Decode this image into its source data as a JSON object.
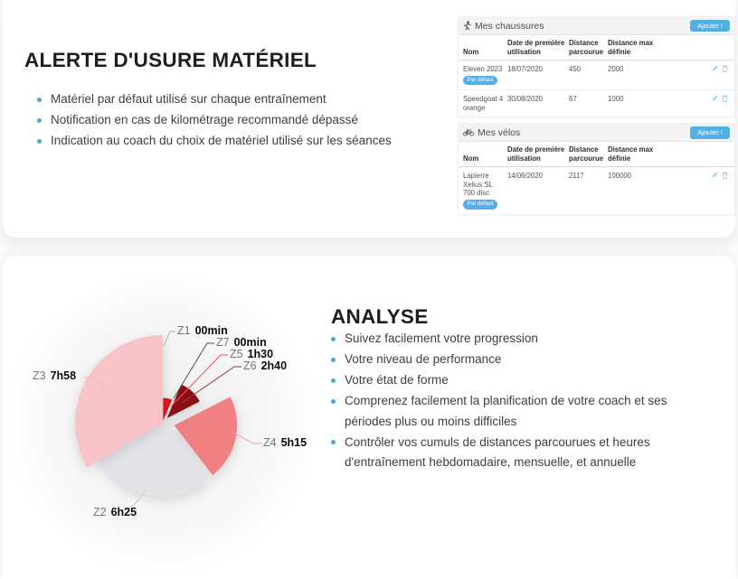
{
  "sections": {
    "usure": {
      "title": "ALERTE D'USURE MATÉRIEL",
      "bullets": [
        "Matériel par défaut utilisé sur chaque entraînement",
        "Notification en cas de kilométrage recommandé dépassé",
        "Indication au coach du choix de matériel utilisé sur les séances"
      ]
    },
    "analyse": {
      "title": "ANALYSE",
      "bullets": [
        "Suivez facilement votre progression",
        "Votre niveau de performance",
        "Votre état de forme",
        "Comprenez facilement la planification de votre coach et ses périodes plus ou moins difficiles",
        "Contrôler vos cumuls de distances parcourues et heures d'entraînement hebdomadaire, mensuelle, et annuelle"
      ]
    }
  },
  "app_preview": {
    "add_button_label": "Ajouter !",
    "badge_default": "Par défaut",
    "columns": [
      "Nom",
      "Date de première utilisation",
      "Distance parcourue",
      "Distance max définie"
    ],
    "tables": {
      "chaussures": {
        "title": "Mes chaussures",
        "icon": "runner-icon",
        "rows": [
          {
            "name": "Eleven 2023",
            "is_default": true,
            "date": "18/07/2020",
            "distance": "450",
            "distance_max": "2000"
          },
          {
            "name": "Speedgoat 4 orange",
            "is_default": false,
            "date": "30/08/2020",
            "distance": "67",
            "distance_max": "1000"
          }
        ]
      },
      "velos": {
        "title": "Mes vélos",
        "icon": "bike-icon",
        "rows": [
          {
            "name": "Lapierre Xelius SL 700 disc",
            "is_default": true,
            "date": "14/06/2020",
            "distance": "2117",
            "distance_max": "100000"
          }
        ]
      }
    },
    "row_action_icons": [
      "pencil-icon",
      "trash-icon"
    ]
  },
  "chart_data": {
    "type": "pie",
    "unit": "minutes",
    "legend_position": "callout-labels",
    "slices": [
      {
        "zone": "Z1",
        "label": "00min",
        "minutes": 0,
        "color": "#f3f3f3",
        "leader_color": "#b3b3b3"
      },
      {
        "zone": "Z7",
        "label": "00min",
        "minutes": 0,
        "color": "#4a2f2f",
        "leader_color": "#5d5050"
      },
      {
        "zone": "Z5",
        "label": "1h30",
        "minutes": 90,
        "color": "#e3141f",
        "leader_color": "#e4555d"
      },
      {
        "zone": "Z6",
        "label": "2h40",
        "minutes": 160,
        "color": "#8c0d12",
        "leader_color": "#9c383c"
      },
      {
        "zone": "Z4",
        "label": "5h15",
        "minutes": 315,
        "color": "#f18082",
        "leader_color": "#f19b9d"
      },
      {
        "zone": "Z2",
        "label": "6h25",
        "minutes": 385,
        "color": "#e4e4e8",
        "leader_color": "#c6c6cc"
      },
      {
        "zone": "Z3",
        "label": "7h58",
        "minutes": 478,
        "color": "#f8c4c8",
        "leader_color": "#f2b3b7"
      }
    ]
  },
  "colors": {
    "accent_blue": "#54b0e4",
    "badge_blue": "#55aee6",
    "bullet_dot": "#4da4d9"
  }
}
